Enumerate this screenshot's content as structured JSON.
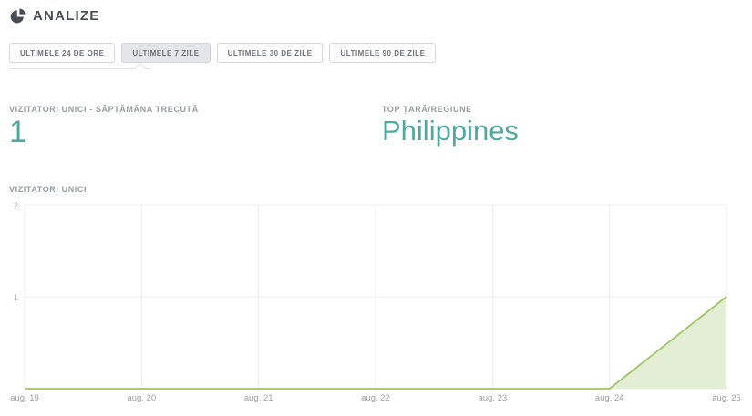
{
  "header": {
    "title": "ANALIZE",
    "icon": "pie-chart-icon"
  },
  "tabs": {
    "items": [
      {
        "label": "ULTIMELE 24 DE ORE",
        "active": false
      },
      {
        "label": "ULTIMELE 7 ZILE",
        "active": true
      },
      {
        "label": "ULTIMELE 30 DE ZILE",
        "active": false
      },
      {
        "label": "ULTIMELE 90 DE ZILE",
        "active": false
      }
    ]
  },
  "stats": {
    "unique_visitors": {
      "label": "VIZITATORI UNICI - SĂPTĂMÂNA TRECUTĂ",
      "value": "1"
    },
    "top_country": {
      "label": "TOP ȚARĂ/REGIUNE",
      "value": "Philippines"
    }
  },
  "chart": {
    "title": "VIZITATORI UNICI"
  },
  "chart_data": {
    "type": "area",
    "title": "VIZITATORI UNICI",
    "x": [
      "aug. 19",
      "aug. 20",
      "aug. 21",
      "aug. 22",
      "aug. 23",
      "aug. 24",
      "aug. 25"
    ],
    "values": [
      0,
      0,
      0,
      0,
      0,
      0,
      1
    ],
    "y_ticks": [
      1,
      2
    ],
    "ylim": [
      0,
      2
    ],
    "xlabel": "",
    "ylabel": "",
    "grid": true,
    "legend": "none",
    "line_color": "#a0c567",
    "fill_color": "#dfecd2"
  },
  "colors": {
    "accent_teal": "#4fa9a0",
    "header_text": "#474c55",
    "label_gray": "#969ba2",
    "grid_gray": "#ececee",
    "line_green": "#a0c567"
  }
}
